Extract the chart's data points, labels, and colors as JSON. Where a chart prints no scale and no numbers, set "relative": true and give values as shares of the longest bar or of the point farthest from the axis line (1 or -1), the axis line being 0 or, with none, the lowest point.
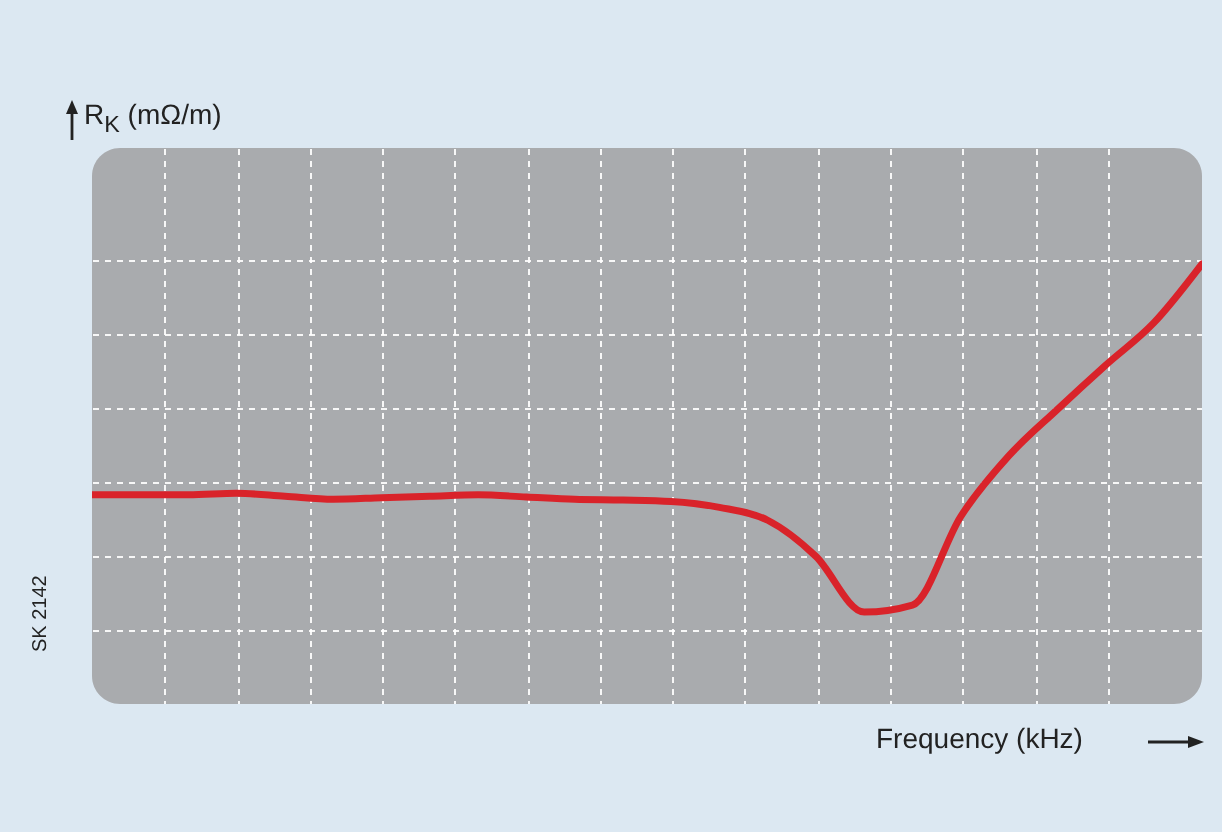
{
  "chart_data": {
    "type": "line",
    "relative": true,
    "ylabel": "R$_{K}$ (mΩ/m)",
    "xlabel": "Frequency (kHz)",
    "annotations": [
      "SK 2142"
    ],
    "grid": true,
    "marker": "none",
    "line_style": "solid",
    "categories": [
      null,
      null,
      null,
      null,
      null,
      null,
      null,
      null,
      null,
      null,
      null,
      null,
      null,
      null,
      null,
      null,
      null,
      null,
      null,
      null,
      null,
      null,
      null,
      null
    ],
    "series": [
      {
        "color": "#d9232a",
        "values": [
          0.374,
          0.374,
          0.374,
          0.378,
          0.37,
          0.362,
          0.366,
          0.37,
          0.374,
          0.368,
          0.362,
          0.36,
          0.356,
          0.34,
          0.305,
          0.207,
          0.056,
          0.075,
          0.315,
          0.48,
          0.605,
          0.725,
          0.84,
          1
        ]
      }
    ]
  }
}
